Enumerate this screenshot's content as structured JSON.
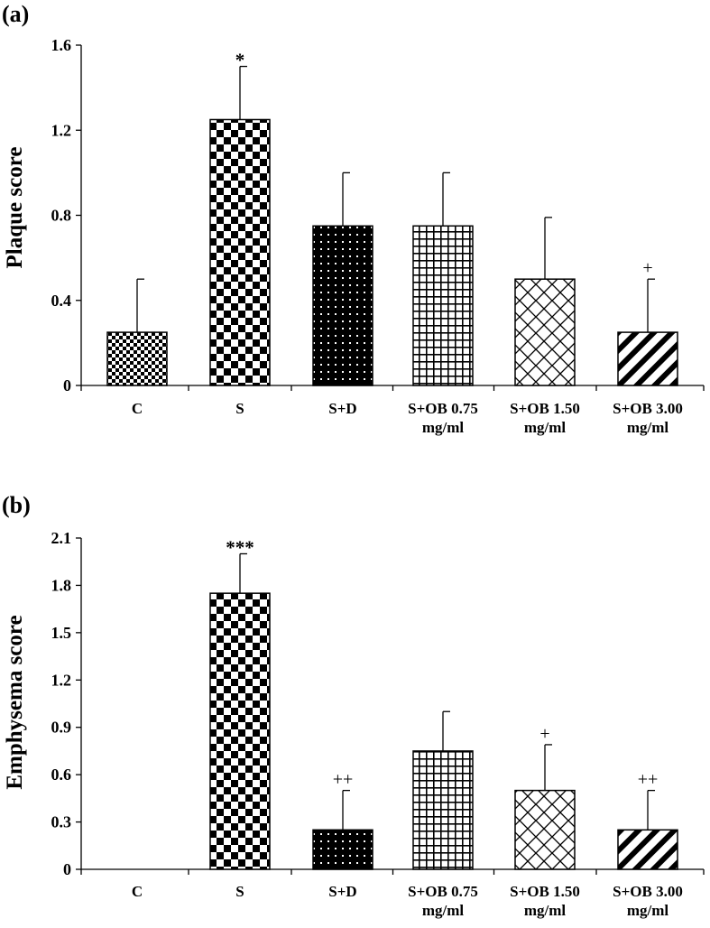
{
  "chart_data": [
    {
      "type": "bar",
      "panel_label": "(a)",
      "title": "",
      "xlabel": "",
      "ylabel": "Plaque score",
      "ylim": [
        0,
        1.6
      ],
      "yticks": [
        "0",
        "0.4",
        "0.8",
        "1.2",
        "1.6"
      ],
      "grid": false,
      "categories": [
        [
          "C"
        ],
        [
          "S"
        ],
        [
          "S+D"
        ],
        [
          "S+OB 0.75",
          "mg/ml"
        ],
        [
          "S+OB 1.50",
          "mg/ml"
        ],
        [
          "S+OB 3.00",
          "mg/ml"
        ]
      ],
      "values": [
        0.25,
        1.25,
        0.75,
        0.75,
        0.5,
        0.25
      ],
      "errors": [
        0.25,
        0.25,
        0.25,
        0.25,
        0.29,
        0.25
      ],
      "annotations": [
        "",
        "*",
        "",
        "",
        "",
        "+"
      ],
      "patterns": [
        "fine-check",
        "checker",
        "dots",
        "grid",
        "diamond",
        "diagonal"
      ]
    },
    {
      "type": "bar",
      "panel_label": "(b)",
      "title": "",
      "xlabel": "",
      "ylabel": "Emphysema score",
      "ylim": [
        0,
        2.1
      ],
      "yticks": [
        "0",
        "0.3",
        "0.6",
        "0.9",
        "1.2",
        "1.5",
        "1.8",
        "2.1"
      ],
      "grid": false,
      "categories": [
        [
          "C"
        ],
        [
          "S"
        ],
        [
          "S+D"
        ],
        [
          "S+OB 0.75",
          "mg/ml"
        ],
        [
          "S+OB 1.50",
          "mg/ml"
        ],
        [
          "S+OB 3.00",
          "mg/ml"
        ]
      ],
      "values": [
        0,
        1.75,
        0.25,
        0.75,
        0.5,
        0.25
      ],
      "errors": [
        0,
        0.25,
        0.25,
        0.25,
        0.29,
        0.25
      ],
      "annotations": [
        "",
        "***",
        "++",
        "",
        "+",
        "++"
      ],
      "patterns": [
        "fine-check",
        "checker",
        "dots",
        "grid",
        "diamond",
        "diagonal"
      ]
    }
  ]
}
